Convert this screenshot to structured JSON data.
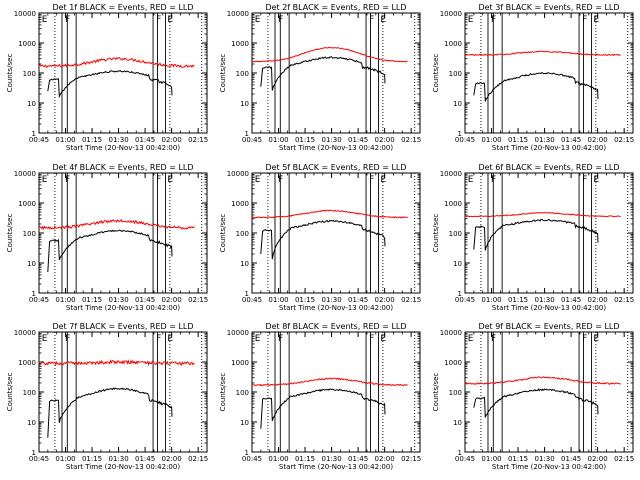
{
  "chart_data": {
    "type": "line",
    "xlabel": "Start Time (20-Nov-13 00:42:00)",
    "ylabel": "Counts/sec",
    "x_ticks": [
      "00:45",
      "01:00",
      "01:15",
      "01:30",
      "01:45",
      "02:00",
      "02:15"
    ],
    "x_range_minutes_after_00_45": [
      0,
      95
    ],
    "y_ticks": [
      "1",
      "10",
      "100",
      "1000",
      "10000"
    ],
    "y_scale": "log",
    "y_range": [
      1,
      10000
    ],
    "series_colors": {
      "events": "#000000",
      "lld": "#ff0000"
    },
    "series_names": {
      "events": "BLACK = Events",
      "lld": "RED = LLD"
    },
    "panels": [
      {
        "title": "Det 1f BLACK = Events, RED = LLD",
        "lld_level": 170,
        "lld_peak": 300,
        "lld_noise": 0.1,
        "events_level": 60,
        "events_peak": 115,
        "events_start": 25,
        "events_gap_start": 14
      },
      {
        "title": "Det 2f BLACK = Events, RED = LLD",
        "lld_level": 240,
        "lld_peak": 700,
        "lld_noise": 0.03,
        "events_level": 150,
        "events_peak": 330,
        "events_start": 35,
        "events_gap_start": 20
      },
      {
        "title": "Det 3f BLACK = Events, RED = LLD",
        "lld_level": 400,
        "lld_peak": 520,
        "lld_noise": 0.04,
        "events_level": 45,
        "events_peak": 100,
        "events_start": 18,
        "events_gap_start": 10
      },
      {
        "title": "Det 4f BLACK = Events, RED = LLD",
        "lld_level": 150,
        "lld_peak": 260,
        "lld_noise": 0.1,
        "events_level": 55,
        "events_peak": 120,
        "events_start": 5,
        "events_gap_start": 10
      },
      {
        "title": "Det 5f BLACK = Events, RED = LLD",
        "lld_level": 330,
        "lld_peak": 560,
        "lld_noise": 0.04,
        "events_level": 120,
        "events_peak": 250,
        "events_start": 20,
        "events_gap_start": 8
      },
      {
        "title": "Det 6f BLACK = Events, RED = LLD",
        "lld_level": 360,
        "lld_peak": 470,
        "lld_noise": 0.03,
        "events_level": 160,
        "events_peak": 270,
        "events_start": 28,
        "events_gap_start": 20
      },
      {
        "title": "Det 7f BLACK = Events, RED = LLD",
        "lld_level": 900,
        "lld_peak": 1000,
        "lld_noise": 0.12,
        "events_level": 50,
        "events_peak": 130,
        "events_start": 3,
        "events_gap_start": 8
      },
      {
        "title": "Det 8f BLACK = Events, RED = LLD",
        "lld_level": 170,
        "lld_peak": 280,
        "lld_noise": 0.05,
        "events_level": 60,
        "events_peak": 120,
        "events_start": 6,
        "events_gap_start": 8
      },
      {
        "title": "Det 9f BLACK = Events, RED = LLD",
        "lld_level": 190,
        "lld_peak": 310,
        "lld_noise": 0.05,
        "events_level": 60,
        "events_peak": 120,
        "events_start": 30,
        "events_gap_start": 12
      }
    ],
    "intervals": [
      {
        "label": "F",
        "start_minute": 13,
        "end_minute": 21
      },
      {
        "label": "F",
        "start_minute": 64.5,
        "end_minute": 71.5
      }
    ],
    "solid_lines_minutes": [
      13,
      16,
      21,
      64.5,
      67,
      71.5
    ],
    "dotted_lines_minutes": [
      9,
      74,
      92
    ],
    "e_markers": [
      {
        "label": "E",
        "minute": 1
      },
      {
        "label": "E",
        "minute": 72
      }
    ]
  }
}
